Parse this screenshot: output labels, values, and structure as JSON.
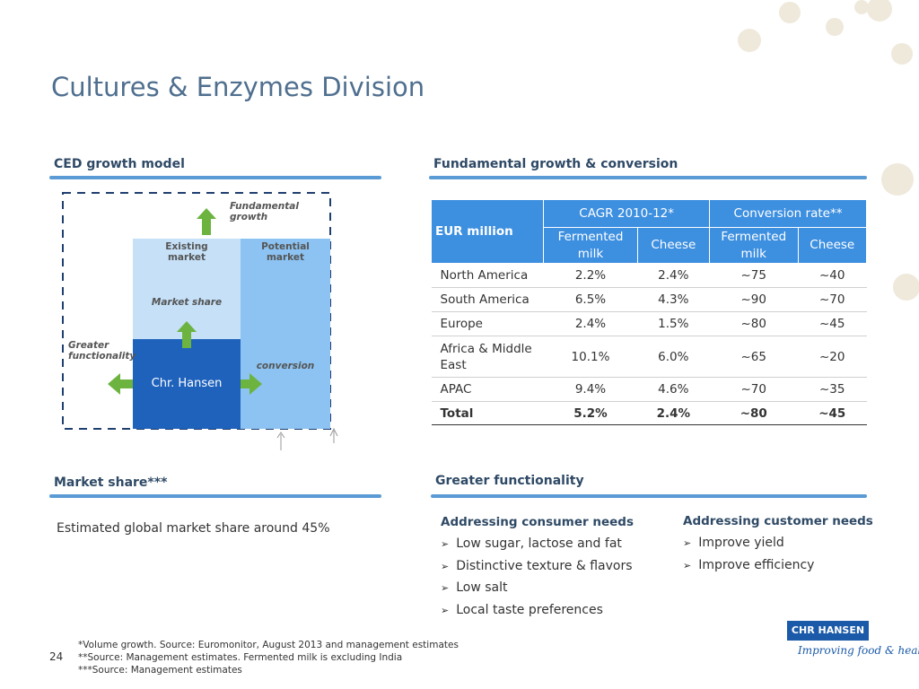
{
  "header": {
    "title": "Cultures & Enzymes Division"
  },
  "growth_model": {
    "heading": "CED growth model",
    "fundamental": "Fundamental growth",
    "existing": "Existing market",
    "potential": "Potential market",
    "market_share": "Market share",
    "greater": "Greater functionality",
    "conversion": "conversion",
    "company": "Chr. Hansen"
  },
  "fundamental_section": {
    "heading": "Fundamental growth & conversion"
  },
  "table": {
    "corner": "EUR million",
    "groups": [
      "CAGR 2010-12*",
      "Conversion rate**"
    ],
    "subheaders": [
      "Fermented milk",
      "Cheese",
      "Fermented milk",
      "Cheese"
    ],
    "rows": [
      [
        "North America",
        "2.2%",
        "2.4%",
        "~75",
        "~40"
      ],
      [
        "South America",
        "6.5%",
        "4.3%",
        "~90",
        "~70"
      ],
      [
        "Europe",
        "2.4%",
        "1.5%",
        "~80",
        "~45"
      ],
      [
        "Africa & Middle East",
        "10.1%",
        "6.0%",
        "~65",
        "~20"
      ],
      [
        "APAC",
        "9.4%",
        "4.6%",
        "~70",
        "~35"
      ],
      [
        "Total",
        "5.2%",
        "2.4%",
        "~80",
        "~45"
      ]
    ]
  },
  "market_share": {
    "heading": "Market share***",
    "text": "Estimated global market share around 45%"
  },
  "functionality": {
    "heading": "Greater functionality",
    "columns": [
      {
        "title": "Addressing consumer needs",
        "items": [
          "Low sugar, lactose and fat",
          "Distinctive texture & flavors",
          "Low salt",
          "Local taste preferences"
        ]
      },
      {
        "title": "Addressing customer needs",
        "items": [
          "Improve yield",
          "Improve efficiency"
        ]
      }
    ]
  },
  "footnotes": [
    "*Volume growth. Source: Euromonitor, August 2013 and management estimates",
    "**Source: Management estimates. Fermented milk is excluding India",
    "***Source: Management estimates"
  ],
  "page_number": "24",
  "logo": {
    "name": "CHR HANSEN",
    "tagline": "Improving food & health"
  }
}
